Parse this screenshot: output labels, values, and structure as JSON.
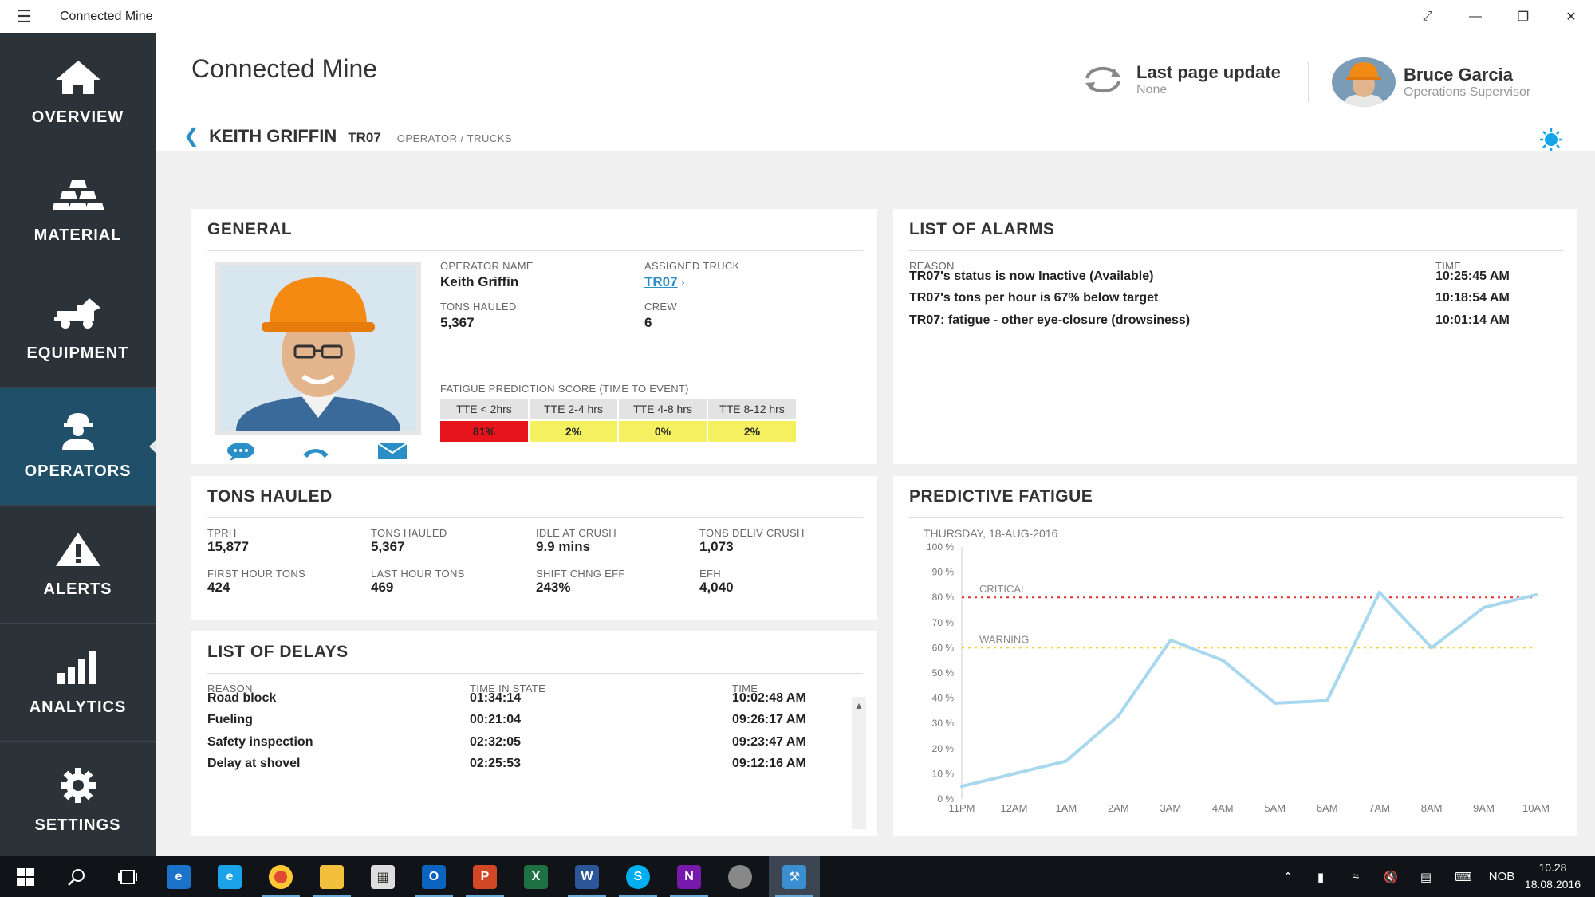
{
  "window": {
    "title": "Connected Mine"
  },
  "sidebar": {
    "items": [
      {
        "label": "OVERVIEW",
        "icon": "home-icon"
      },
      {
        "label": "MATERIAL",
        "icon": "material-icon"
      },
      {
        "label": "EQUIPMENT",
        "icon": "truck-icon"
      },
      {
        "label": "OPERATORS",
        "icon": "operator-icon",
        "active": true
      },
      {
        "label": "ALERTS",
        "icon": "alert-icon"
      },
      {
        "label": "ANALYTICS",
        "icon": "bar-chart-icon"
      },
      {
        "label": "SETTINGS",
        "icon": "gear-icon"
      }
    ]
  },
  "header": {
    "title": "Connected Mine",
    "last_update_label": "Last page update",
    "last_update_value": "None",
    "user_name": "Bruce Garcia",
    "user_role": "Operations Supervisor",
    "operator_name": "KEITH GRIFFIN",
    "operator_truck": "TR07",
    "operator_path": "OPERATOR / TRUCKS"
  },
  "general": {
    "title": "GENERAL",
    "operator_name_label": "OPERATOR NAME",
    "operator_name": "Keith Griffin",
    "assigned_truck_label": "ASSIGNED TRUCK",
    "assigned_truck": "TR07",
    "tons_hauled_label": "TONS HAULED",
    "tons_hauled": "5,367",
    "crew_label": "CREW",
    "crew": "6",
    "fatigue_label": "FATIGUE PREDICTION SCORE (TIME TO EVENT)",
    "tte": [
      {
        "label": "TTE < 2hrs",
        "value": "81%",
        "color": "#e8141b"
      },
      {
        "label": "TTE 2-4 hrs",
        "value": "2%",
        "color": "#f5f060"
      },
      {
        "label": "TTE 4-8 hrs",
        "value": "0%",
        "color": "#f5f060"
      },
      {
        "label": "TTE 8-12 hrs",
        "value": "2%",
        "color": "#f5f060"
      }
    ]
  },
  "alarms": {
    "title": "LIST OF ALARMS",
    "reason_label": "REASON",
    "time_label": "TIME",
    "rows": [
      {
        "reason": "TR07's status is now Inactive (Available)",
        "time": "10:25:45 AM"
      },
      {
        "reason": "TR07's tons per hour is 67% below target",
        "time": "10:18:54 AM"
      },
      {
        "reason": "TR07: fatigue - other eye-closure (drowsiness)",
        "time": "10:01:14 AM"
      }
    ]
  },
  "tons": {
    "title": "TONS HAULED",
    "stats": [
      {
        "label": "TPRH",
        "value": "15,877"
      },
      {
        "label": "TONS HAULED",
        "value": "5,367"
      },
      {
        "label": "IDLE AT CRUSH",
        "value": "9.9 mins"
      },
      {
        "label": "TONS DELIV CRUSH",
        "value": "1,073"
      },
      {
        "label": "FIRST HOUR TONS",
        "value": "424"
      },
      {
        "label": "LAST HOUR TONS",
        "value": "469"
      },
      {
        "label": "SHIFT CHNG EFF",
        "value": "243%"
      },
      {
        "label": "EFH",
        "value": "4,040"
      }
    ]
  },
  "delays": {
    "title": "LIST OF DELAYS",
    "reason_label": "REASON",
    "state_label": "TIME IN STATE",
    "time_label": "TIME",
    "rows": [
      {
        "reason": "Road block",
        "state": "01:34:14",
        "time": "10:02:48 AM"
      },
      {
        "reason": "Fueling",
        "state": "00:21:04",
        "time": "09:26:17 AM"
      },
      {
        "reason": "Safety inspection",
        "state": "02:32:05",
        "time": "09:23:47 AM"
      },
      {
        "reason": "Delay at shovel",
        "state": "02:25:53",
        "time": "09:12:16 AM"
      }
    ]
  },
  "fatigue": {
    "title": "PREDICTIVE FATIGUE",
    "date_label": "THURSDAY, 18-AUG-2016"
  },
  "chart_data": {
    "type": "line",
    "title": "",
    "x": [
      "11PM",
      "12AM",
      "1AM",
      "2AM",
      "3AM",
      "4AM",
      "5AM",
      "6AM",
      "7AM",
      "8AM",
      "9AM",
      "10AM"
    ],
    "series": [
      {
        "values": [
          5,
          10,
          15,
          33,
          63,
          55,
          38,
          39,
          82,
          60,
          76,
          81
        ]
      }
    ],
    "y_ticks": [
      "0 %",
      "10 %",
      "20 %",
      "30 %",
      "40 %",
      "50 %",
      "60 %",
      "70 %",
      "80 %",
      "90 %",
      "100 %"
    ],
    "ylim": [
      0,
      100
    ],
    "thresholds": [
      {
        "name": "CRITICAL",
        "value": 80,
        "color": "#e03030"
      },
      {
        "name": "WARNING",
        "value": 60,
        "color": "#f0d040"
      }
    ],
    "line_color": "#a8d8ef"
  },
  "taskbar": {
    "lang": "NOB",
    "time": "10.28",
    "date": "18.08.2016"
  }
}
